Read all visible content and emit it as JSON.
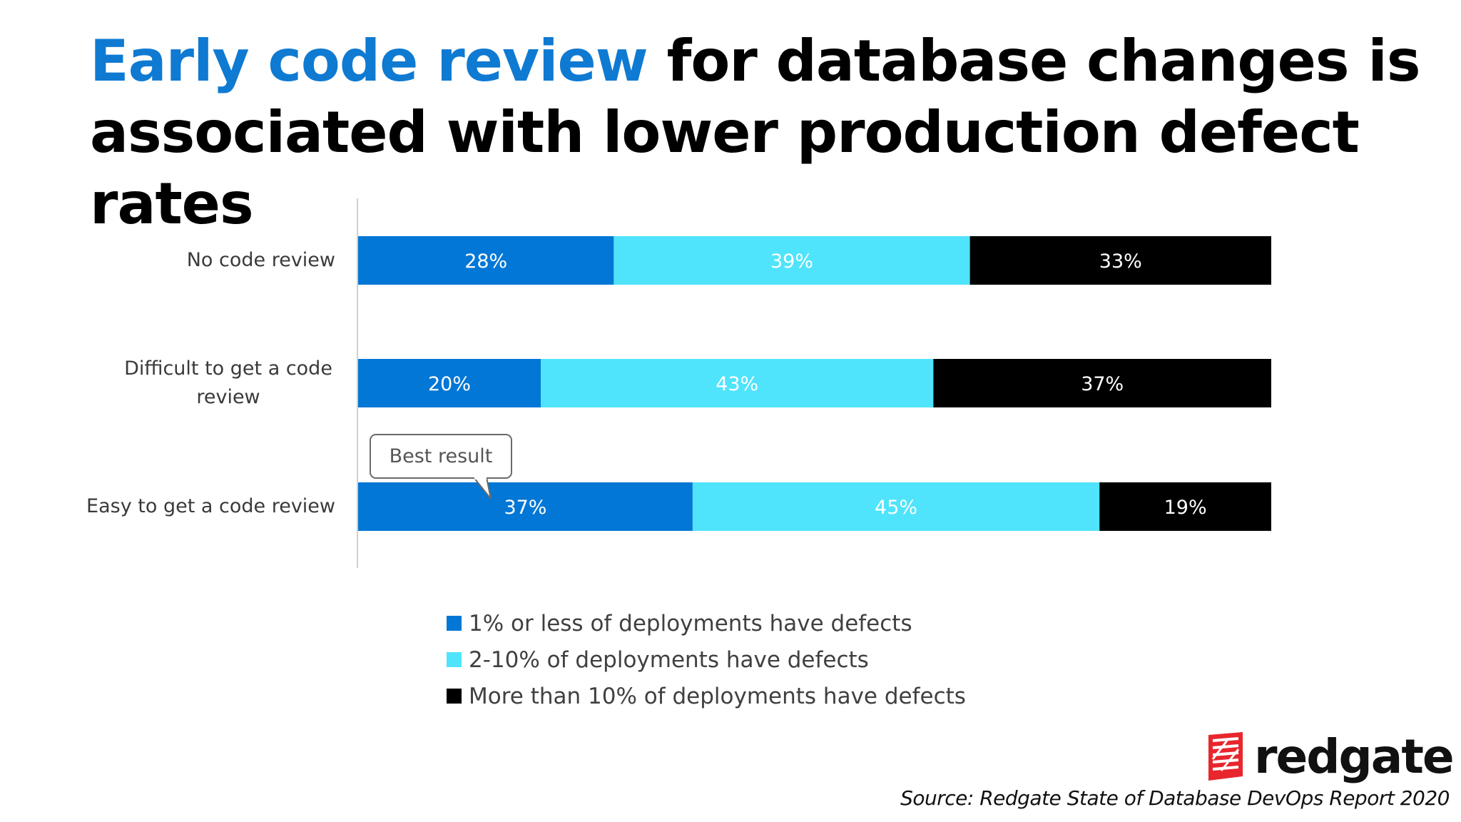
{
  "title": {
    "accent": "Early code review",
    "rest": " for database changes is associated with lower production defect rates"
  },
  "chart_data": {
    "type": "bar",
    "orientation": "horizontal",
    "stacked": true,
    "percent": true,
    "categories": [
      "No code review",
      "Difficult to get a code review",
      "Easy to get a code review"
    ],
    "series": [
      {
        "name": "1% or less of deployments have defects",
        "color": "#0377d6",
        "values": [
          28,
          20,
          37
        ],
        "labels": [
          "28%",
          "20%",
          "37%"
        ]
      },
      {
        "name": "2-10% of deployments have defects",
        "color": "#4fe4fb",
        "values": [
          39,
          43,
          45
        ],
        "labels": [
          "39%",
          "43%",
          "45%"
        ]
      },
      {
        "name": "More than 10% of deployments have defects",
        "color": "#000000",
        "values": [
          33,
          37,
          19
        ],
        "labels": [
          "33%",
          "37%",
          "19%"
        ]
      }
    ],
    "annotation": {
      "text": "Best result",
      "category": "Easy to get a code review"
    },
    "legend_position": "bottom"
  },
  "logo": {
    "text": "redgate",
    "color": "#e8262d"
  },
  "source": "Source: Redgate State of Database DevOps Report 2020"
}
